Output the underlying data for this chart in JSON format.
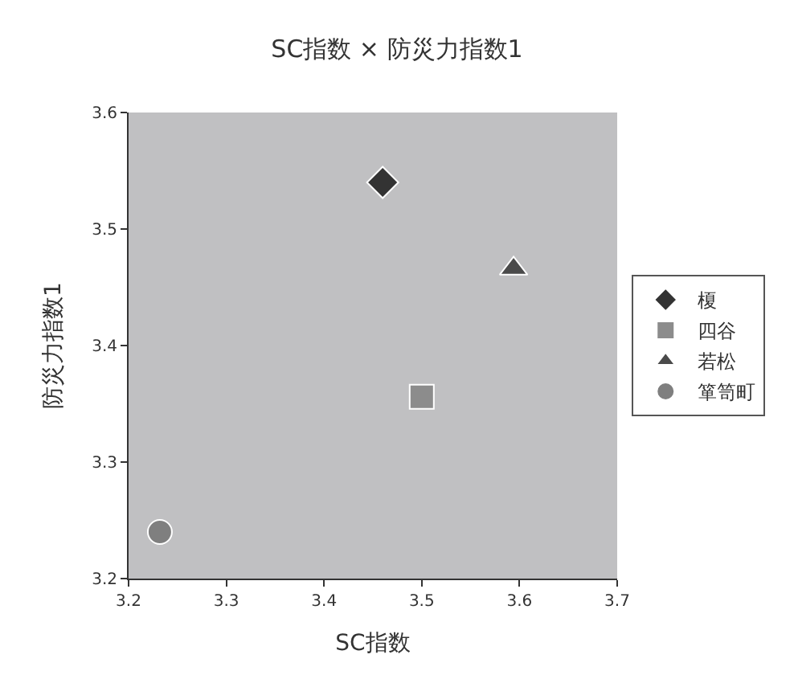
{
  "chart_data": {
    "type": "scatter",
    "title": "SC指数 × 防災力指数1",
    "xlabel": "SC指数",
    "ylabel": "防災力指数1",
    "xlim": [
      3.2,
      3.7
    ],
    "xticks": [
      3.2,
      3.3,
      3.4,
      3.5,
      3.6,
      3.7
    ],
    "ylim": [
      3.2,
      3.6
    ],
    "yticks": [
      3.2,
      3.3,
      3.4,
      3.5,
      3.6
    ],
    "grid": false,
    "legend": "right",
    "series": [
      {
        "name": "榎",
        "color": "#333333",
        "marker": "diamond",
        "x": [
          3.46
        ],
        "values": [
          3.54
        ]
      },
      {
        "name": "四谷",
        "color": "#8c8c8c",
        "marker": "square",
        "x": [
          3.5
        ],
        "values": [
          3.356
        ]
      },
      {
        "name": "若松",
        "color": "#4a4a4a",
        "marker": "triangle",
        "x": [
          3.594
        ],
        "values": [
          3.466
        ]
      },
      {
        "name": "箪笥町",
        "color": "#7f7f7f",
        "marker": "circle",
        "x": [
          3.232
        ],
        "values": [
          3.24
        ]
      }
    ]
  }
}
